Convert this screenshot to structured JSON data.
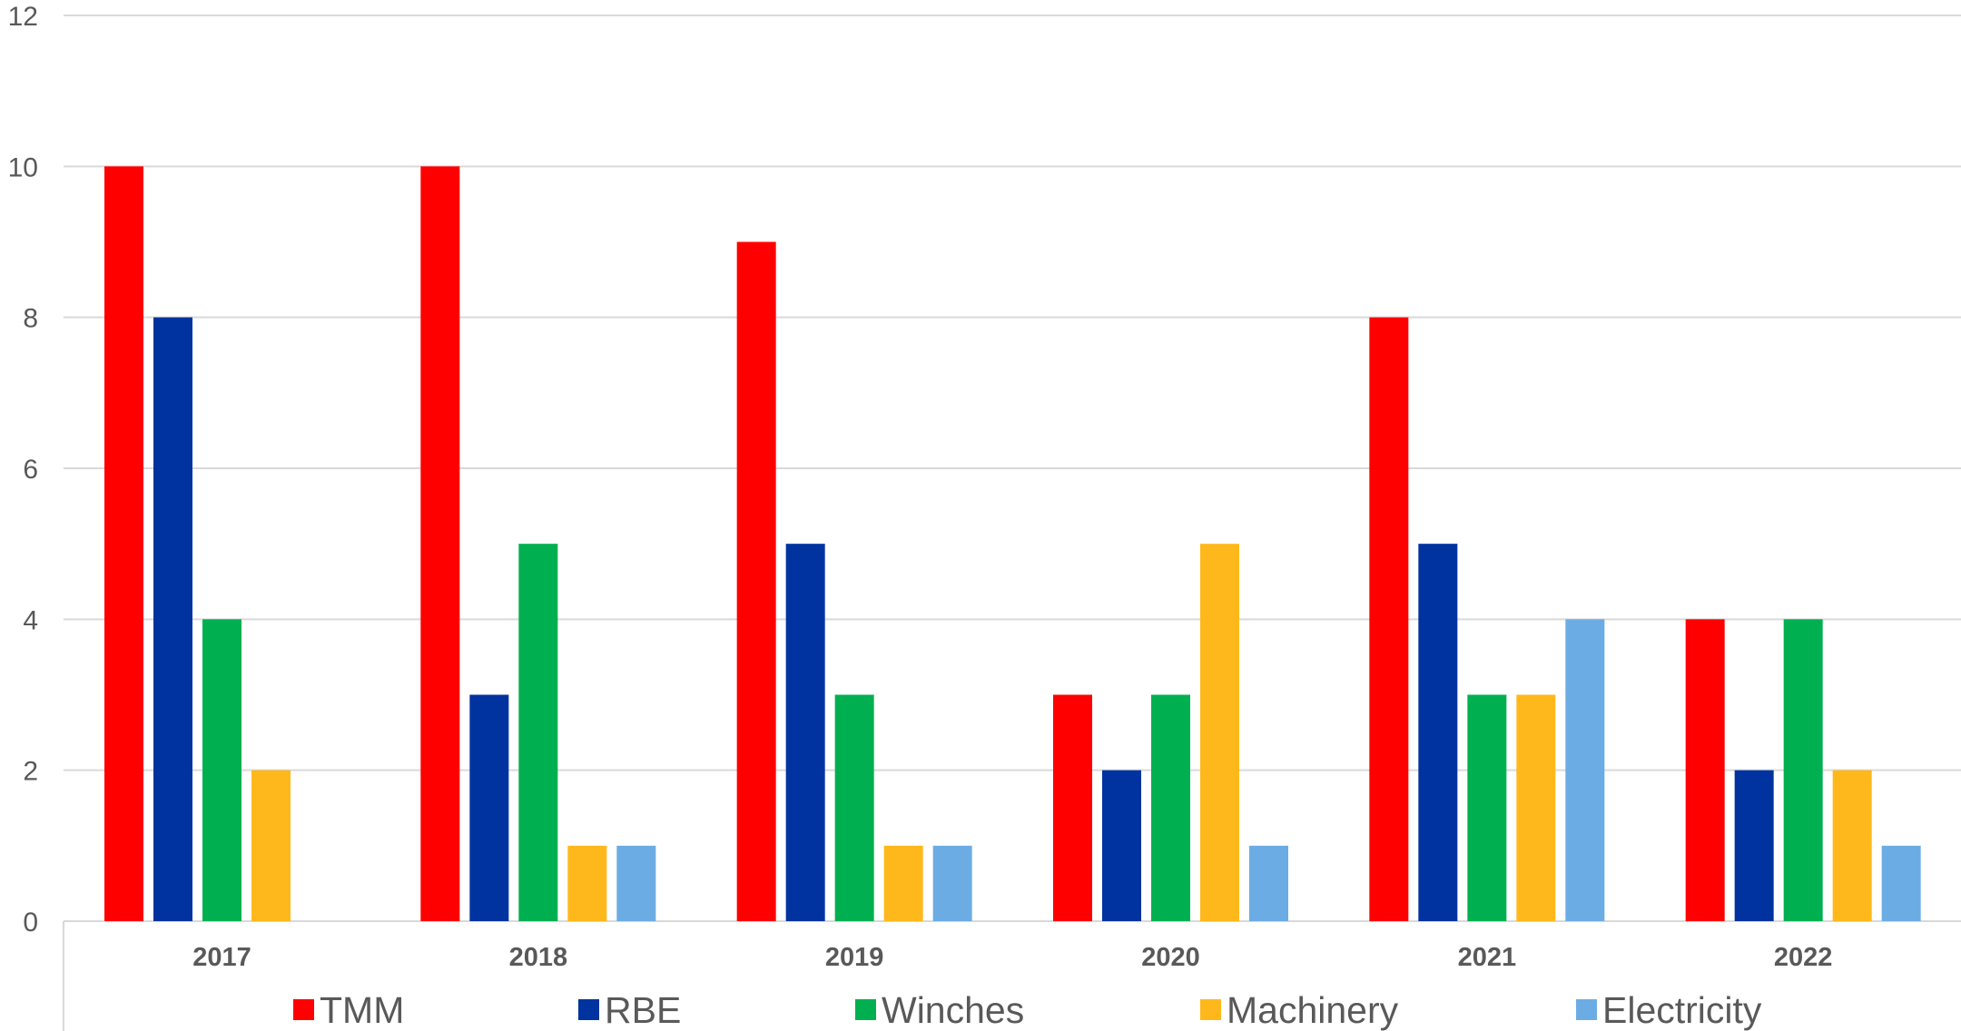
{
  "chart_data": {
    "type": "bar",
    "categories": [
      "2017",
      "2018",
      "2019",
      "2020",
      "2021",
      "2022"
    ],
    "series": [
      {
        "name": "TMM",
        "color": "#ff0000",
        "values": [
          10,
          10,
          9,
          3,
          8,
          4
        ]
      },
      {
        "name": "RBE",
        "color": "#0033a0",
        "values": [
          8,
          3,
          5,
          2,
          5,
          2
        ]
      },
      {
        "name": "Winches",
        "color": "#00b050",
        "values": [
          4,
          5,
          3,
          3,
          3,
          4
        ]
      },
      {
        "name": "Machinery",
        "color": "#ffb81c",
        "values": [
          2,
          1,
          1,
          5,
          3,
          2
        ]
      },
      {
        "name": "Electricity",
        "color": "#6cace4",
        "values": [
          0,
          1,
          1,
          1,
          4,
          1
        ]
      }
    ],
    "ylim": [
      0,
      12
    ],
    "yticks": [
      0,
      2,
      4,
      6,
      8,
      10,
      12
    ],
    "grid": true,
    "legend": "bottom",
    "title": "",
    "xlabel": "",
    "ylabel": ""
  }
}
